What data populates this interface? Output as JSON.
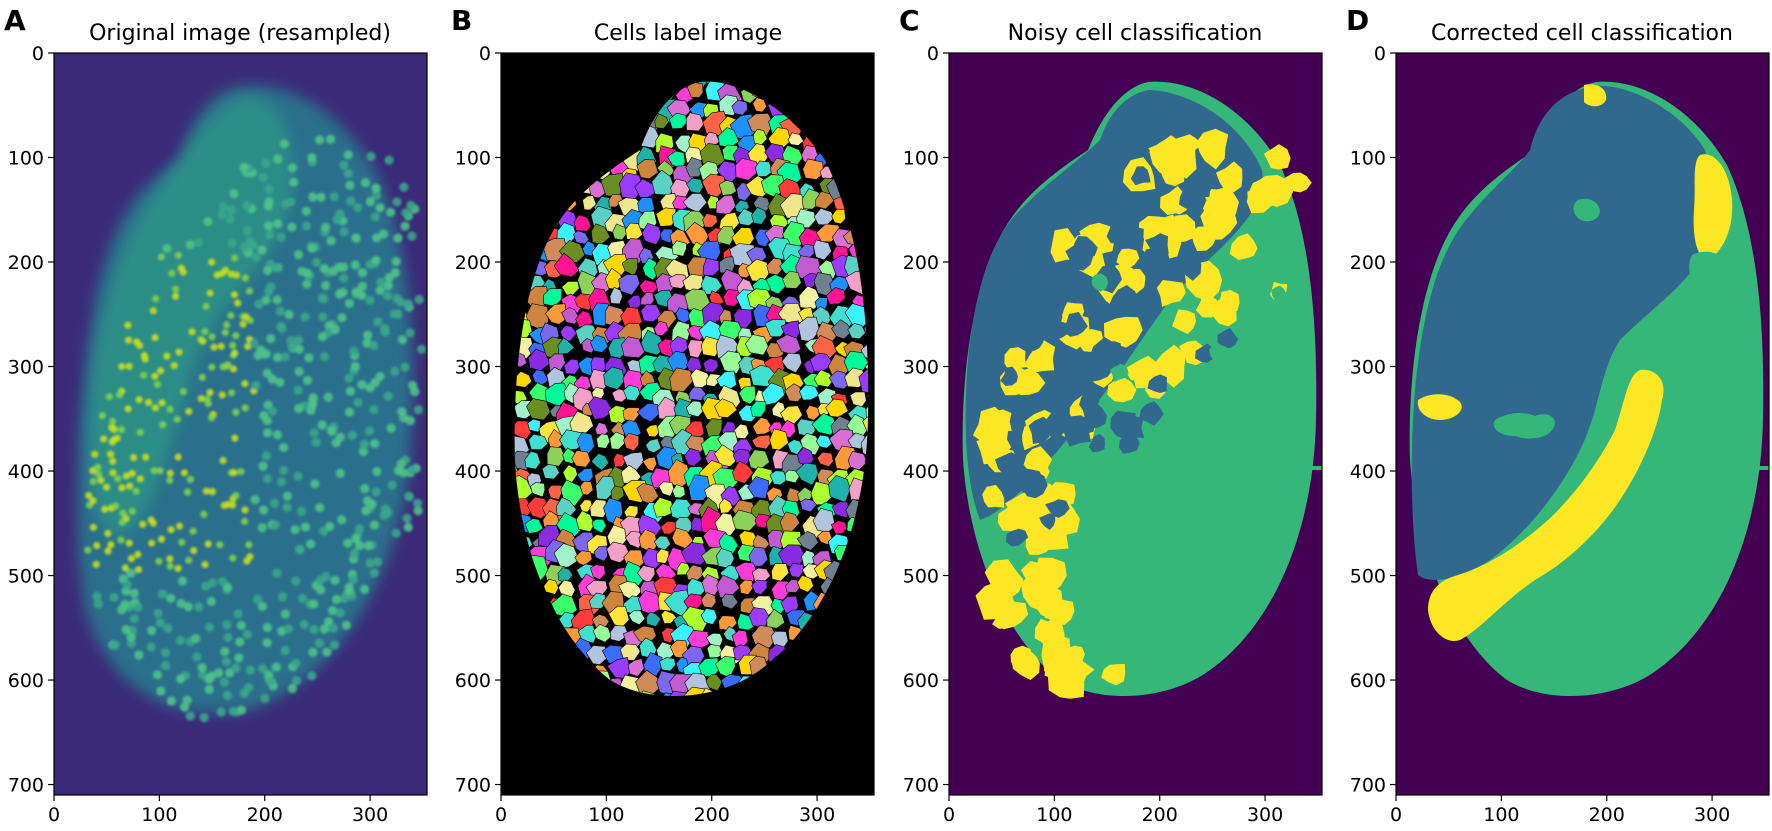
{
  "figure": {
    "panels": [
      {
        "letter": "A",
        "title": "Original image (resampled)",
        "x_ticks": [
          "0",
          "100",
          "200",
          "300"
        ],
        "y_ticks": [
          "0",
          "100",
          "200",
          "300",
          "400",
          "500",
          "600",
          "700"
        ],
        "content": "fluorescence-nuclei"
      },
      {
        "letter": "B",
        "title": "Cells label image",
        "x_ticks": [
          "0",
          "100",
          "200",
          "300"
        ],
        "y_ticks": [
          "0",
          "100",
          "200",
          "300",
          "400",
          "500",
          "600",
          "700"
        ],
        "content": "label-mosaic"
      },
      {
        "letter": "C",
        "title": "Noisy cell classification",
        "x_ticks": [
          "0",
          "100",
          "200",
          "300"
        ],
        "y_ticks": [
          "0",
          "100",
          "200",
          "300",
          "400",
          "500",
          "600",
          "700"
        ],
        "content": "noisy-classes"
      },
      {
        "letter": "D",
        "title": "Corrected cell classification",
        "x_ticks": [
          "0",
          "100",
          "200",
          "300"
        ],
        "y_ticks": [
          "0",
          "100",
          "200",
          "300",
          "400",
          "500",
          "600",
          "700"
        ],
        "content": "corrected-classes"
      }
    ],
    "colors": {
      "viridis_bg": "#440154",
      "class_blue": "#31688e",
      "class_green": "#35b779",
      "class_yellow": "#fde725",
      "raw_bg": "#3b2a78",
      "raw_mid": "#2f6f8e",
      "raw_bright": "#c8e020",
      "label_bg": "#000000"
    }
  }
}
